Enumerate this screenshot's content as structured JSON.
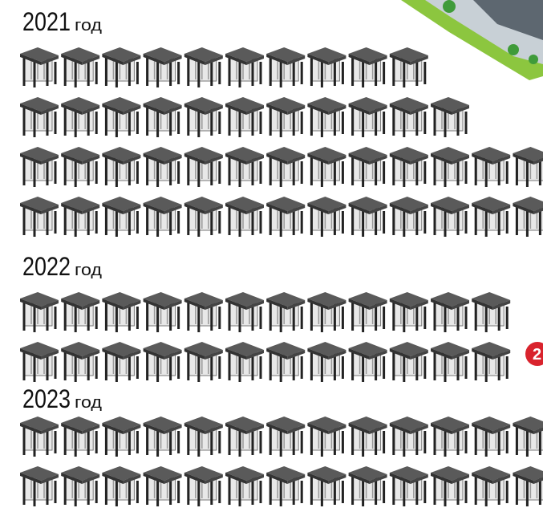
{
  "sections": [
    {
      "year": "2021",
      "unit": "год",
      "rows": [
        10,
        11,
        13,
        13
      ]
    },
    {
      "year": "2022",
      "unit": "год",
      "rows": [
        12,
        12
      ]
    },
    {
      "year": "2023",
      "unit": "год",
      "rows": [
        13,
        13
      ]
    }
  ],
  "badge": {
    "label": "2"
  }
}
